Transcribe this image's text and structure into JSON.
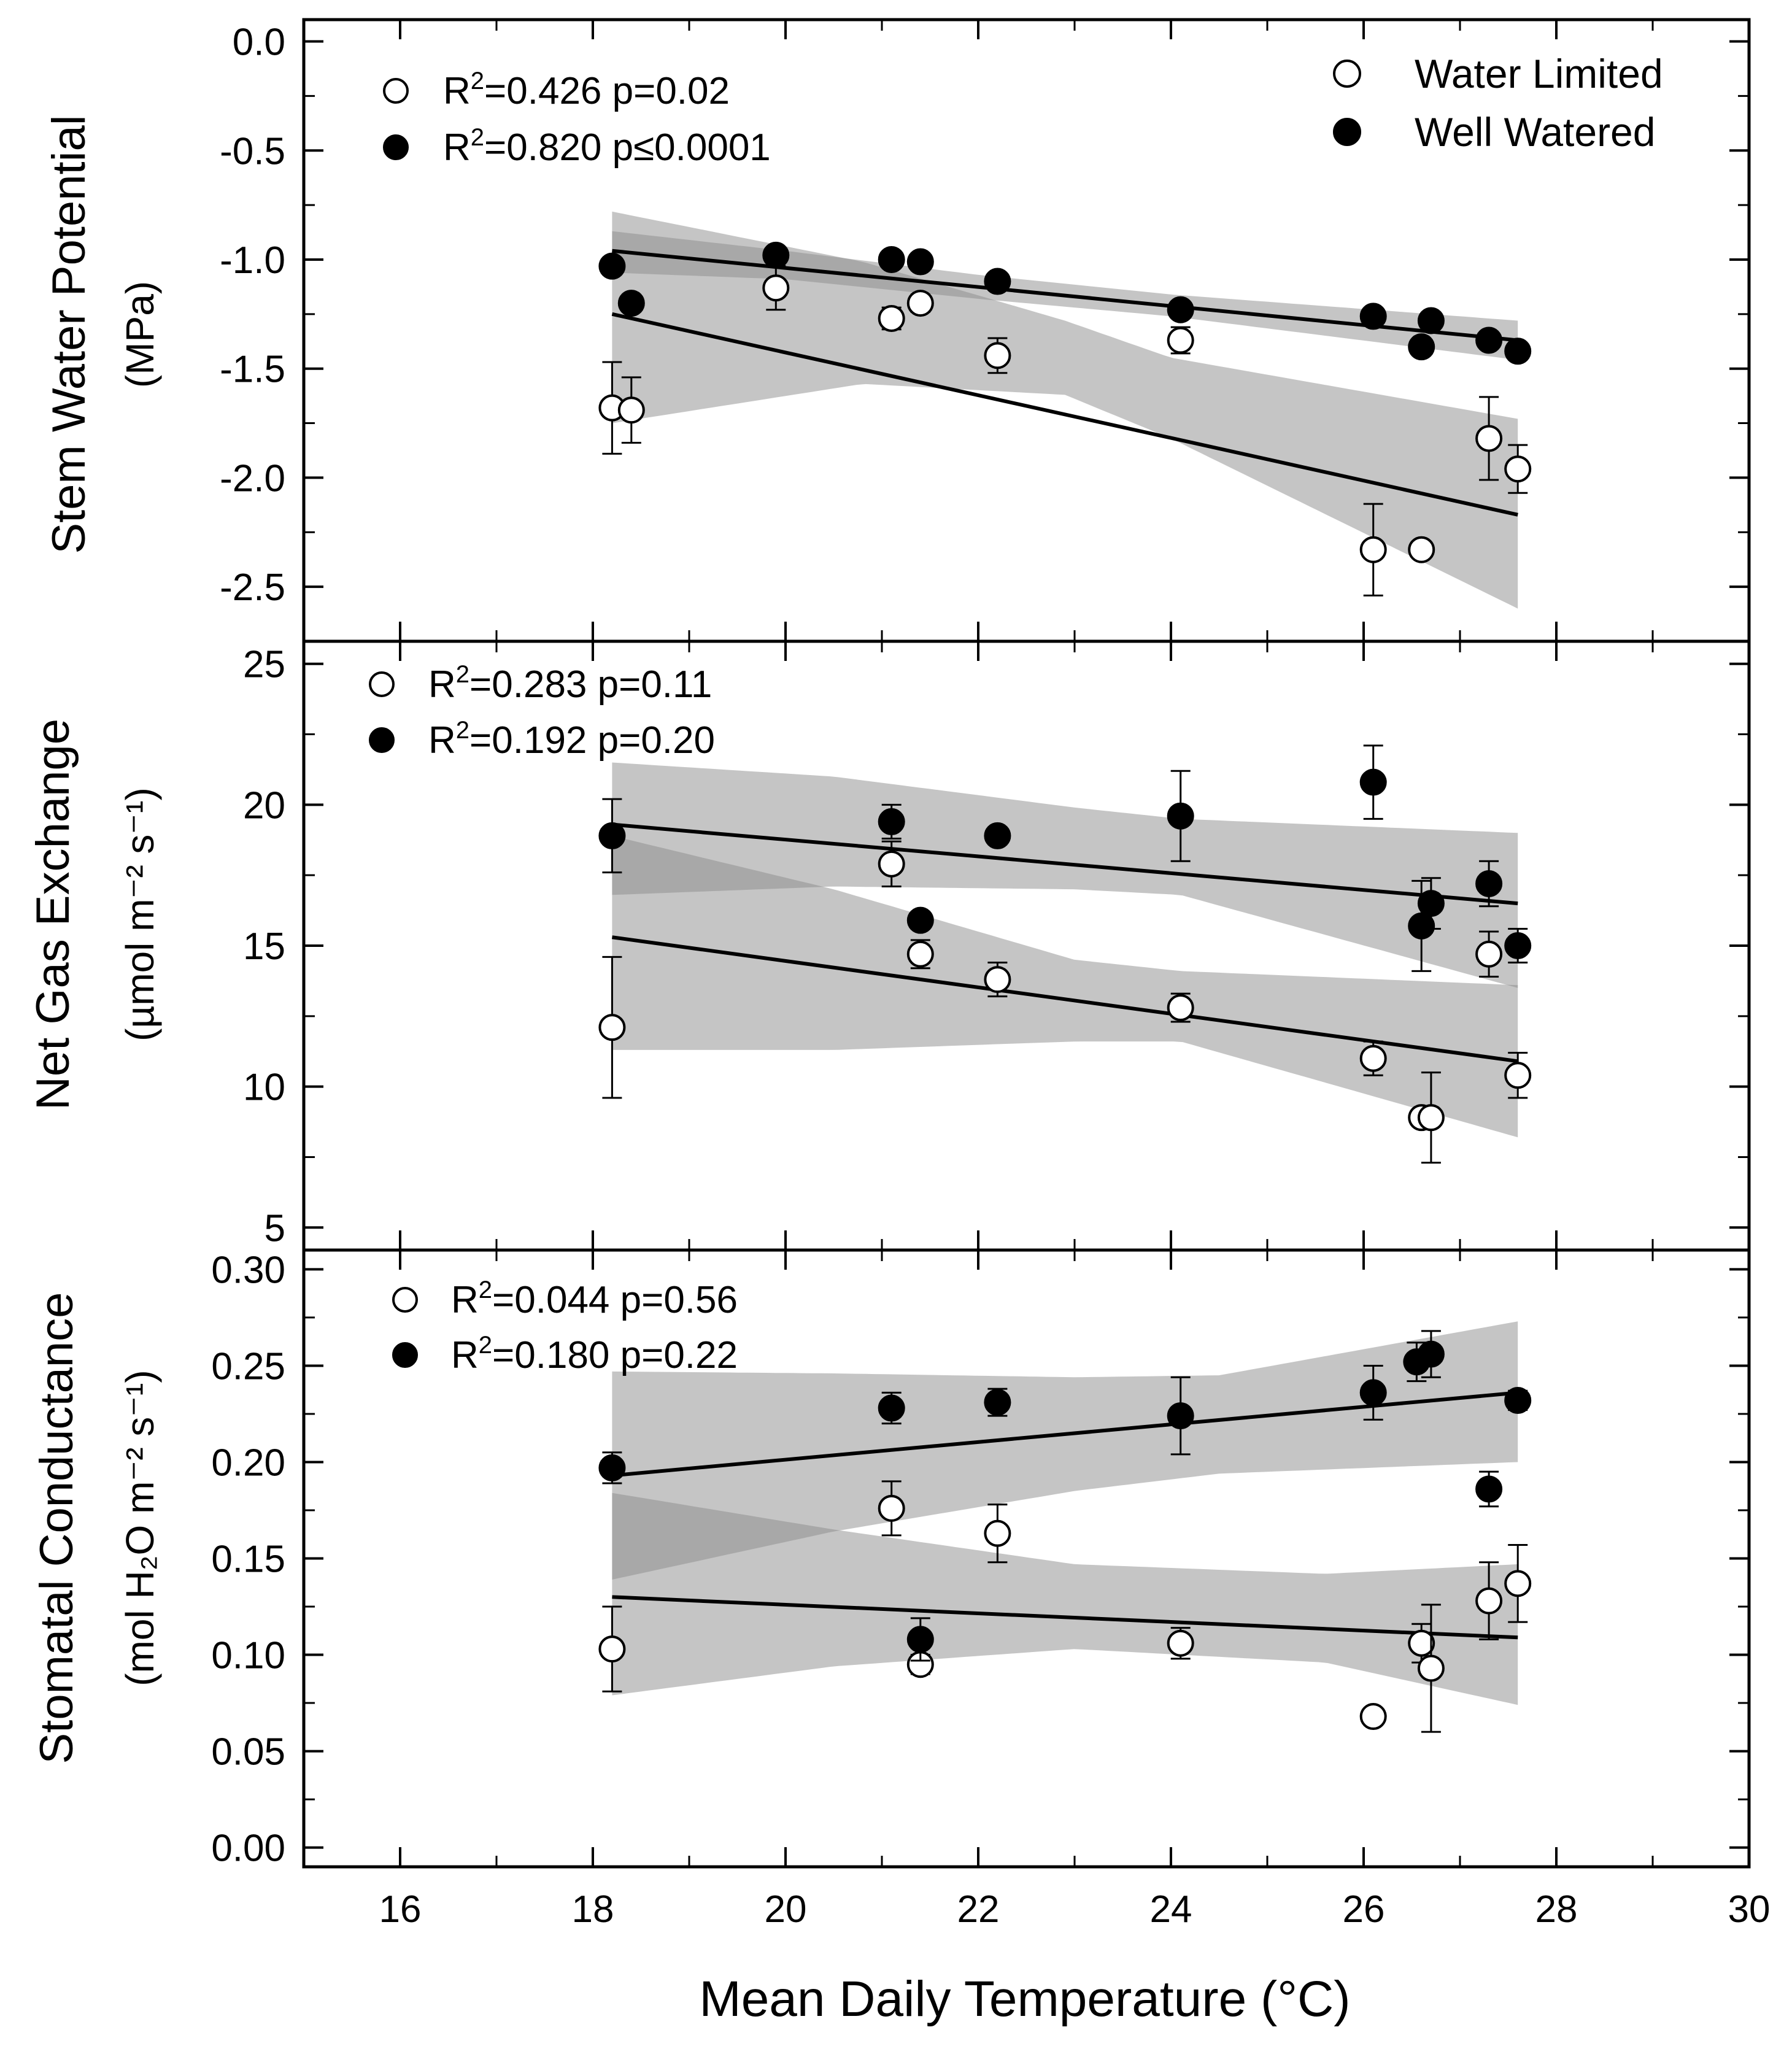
{
  "chart_data": {
    "type": "scatter",
    "title": "",
    "xlabel": "Mean Daily Temperature (°C)",
    "xlim": [
      15,
      30
    ],
    "xticks": [
      16,
      18,
      20,
      22,
      24,
      26,
      28,
      30
    ],
    "xtick_labels": [
      "16",
      "18",
      "20",
      "22",
      "24",
      "26",
      "28",
      "30"
    ],
    "legend": {
      "placement": "top-right of top panel",
      "entries": [
        {
          "label": "Water Limited",
          "marker": "open-circle"
        },
        {
          "label": "Well Watered",
          "marker": "filled-circle"
        }
      ]
    },
    "panels": [
      {
        "id": "swp",
        "ylabel": "Stem Water Potential",
        "yunit": "(MPa)",
        "ylim": [
          -2.75,
          0.1
        ],
        "yticks": [
          0.0,
          -0.5,
          -1.0,
          -1.5,
          -2.0,
          -2.5
        ],
        "ytick_labels": [
          "0.0",
          "-0.5",
          "-1.0",
          "-1.5",
          "-2.0",
          "-2.5"
        ],
        "stats": [
          {
            "marker": "open",
            "r2": "0.426",
            "p": "p=0.02"
          },
          {
            "marker": "filled",
            "r2": "0.820",
            "p": "p≤0.0001"
          }
        ],
        "series": [
          {
            "name": "Water Limited",
            "points": [
              [
                18.2,
                -1.68,
                0.21
              ],
              [
                18.4,
                -1.69,
                0.15
              ],
              [
                19.9,
                -1.13,
                0.1
              ],
              [
                21.1,
                -1.27,
                0.05
              ],
              [
                21.4,
                -1.2,
                0.04
              ],
              [
                22.2,
                -1.44,
                0.08
              ],
              [
                24.1,
                -1.37,
                0.06
              ],
              [
                26.1,
                -2.33,
                0.21
              ],
              [
                26.6,
                -2.33,
                0.02
              ],
              [
                27.3,
                -1.82,
                0.19
              ],
              [
                27.6,
                -1.96,
                0.11
              ]
            ],
            "fit": {
              "x": [
                18.2,
                27.6
              ],
              "y": [
                -1.25,
                -2.17
              ]
            },
            "band": {
              "x": [
                18.2,
                20.8,
                22.9,
                24.0,
                27.6
              ],
              "lower": [
                -1.75,
                -1.57,
                -1.62,
                -1.82,
                -2.6
              ],
              "upper": [
                -0.78,
                -1.01,
                -1.28,
                -1.45,
                -1.73
              ]
            }
          },
          {
            "name": "Well Watered",
            "points": [
              [
                18.2,
                -1.03,
                0.02
              ],
              [
                18.4,
                -1.2,
                0.02
              ],
              [
                19.9,
                -0.98,
                0.02
              ],
              [
                21.1,
                -1.0,
                0.02
              ],
              [
                21.4,
                -1.01,
                0.02
              ],
              [
                22.2,
                -1.1,
                0.02
              ],
              [
                24.1,
                -1.23,
                0.02
              ],
              [
                26.1,
                -1.26,
                0.02
              ],
              [
                26.6,
                -1.4,
                0.02
              ],
              [
                26.7,
                -1.28,
                0.02
              ],
              [
                27.3,
                -1.37,
                0.02
              ],
              [
                27.6,
                -1.42,
                0.02
              ]
            ],
            "fit": {
              "x": [
                18.2,
                27.6
              ],
              "y": [
                -0.96,
                -1.37
              ]
            },
            "band": {
              "x": [
                18.2,
                20.0,
                22.0,
                24.0,
                27.6
              ],
              "lower": [
                -1.06,
                -1.09,
                -1.18,
                -1.26,
                -1.46
              ],
              "upper": [
                -0.87,
                -0.96,
                -1.07,
                -1.16,
                -1.28
              ]
            }
          }
        ]
      },
      {
        "id": "nge",
        "ylabel": "Net Gas Exchange",
        "yunit": "(µmol m⁻² s⁻¹)",
        "ylim": [
          4.2,
          25.8
        ],
        "yticks": [
          5,
          10,
          15,
          20,
          25
        ],
        "ytick_labels": [
          "5",
          "10",
          "15",
          "20",
          "25"
        ],
        "stats": [
          {
            "marker": "open",
            "r2": "0.283",
            "p": "p=0.11"
          },
          {
            "marker": "filled",
            "r2": "0.192",
            "p": "p=0.20"
          }
        ],
        "series": [
          {
            "name": "Water Limited",
            "points": [
              [
                18.2,
                12.1,
                2.5
              ],
              [
                21.1,
                17.9,
                0.8
              ],
              [
                21.4,
                14.7,
                0.5
              ],
              [
                22.2,
                13.8,
                0.6
              ],
              [
                24.1,
                12.8,
                0.5
              ],
              [
                26.1,
                11.0,
                0.6
              ],
              [
                26.6,
                8.9,
                0.3
              ],
              [
                26.7,
                8.9,
                1.6
              ],
              [
                27.3,
                14.7,
                0.8
              ],
              [
                27.6,
                10.4,
                0.8
              ]
            ],
            "fit": {
              "x": [
                18.2,
                27.6
              ],
              "y": [
                15.3,
                10.9
              ]
            },
            "band": {
              "x": [
                18.2,
                20.5,
                23.0,
                24.1,
                27.6
              ],
              "lower": [
                11.3,
                11.3,
                11.6,
                11.6,
                8.2
              ],
              "upper": [
                18.9,
                17.0,
                14.5,
                14.1,
                13.6
              ]
            }
          },
          {
            "name": "Well Watered",
            "points": [
              [
                18.2,
                18.9,
                1.3
              ],
              [
                21.1,
                19.4,
                0.6
              ],
              [
                21.4,
                15.9,
                0.3
              ],
              [
                22.2,
                18.9,
                0.3
              ],
              [
                24.1,
                19.6,
                1.6
              ],
              [
                26.1,
                20.8,
                1.3
              ],
              [
                26.6,
                15.7,
                1.6
              ],
              [
                26.7,
                16.5,
                0.9
              ],
              [
                27.3,
                17.2,
                0.8
              ],
              [
                27.6,
                15.0,
                0.6
              ]
            ],
            "fit": {
              "x": [
                18.2,
                27.6
              ],
              "y": [
                19.3,
                16.5
              ]
            },
            "band": {
              "x": [
                18.2,
                20.5,
                23.0,
                24.1,
                27.6
              ],
              "lower": [
                16.8,
                17.1,
                17.0,
                16.8,
                13.5
              ],
              "upper": [
                21.5,
                21.0,
                19.9,
                19.5,
                19.0
              ]
            }
          }
        ]
      },
      {
        "id": "gs",
        "ylabel": "Stomatal Conductance",
        "yunit": "(mol H₂O m⁻² s⁻¹)",
        "ylim": [
          -0.01,
          0.31
        ],
        "yticks": [
          0.0,
          0.05,
          0.1,
          0.15,
          0.2,
          0.25,
          0.3
        ],
        "ytick_labels": [
          "0.00",
          "0.05",
          "0.10",
          "0.15",
          "0.20",
          "0.25",
          "0.30"
        ],
        "stats": [
          {
            "marker": "open",
            "r2": "0.044",
            "p": "p=0.56"
          },
          {
            "marker": "filled",
            "r2": "0.180",
            "p": "p=0.22"
          }
        ],
        "series": [
          {
            "name": "Water Limited",
            "points": [
              [
                18.2,
                0.103,
                0.022
              ],
              [
                21.1,
                0.176,
                0.014
              ],
              [
                21.4,
                0.095,
                0.005
              ],
              [
                22.2,
                0.163,
                0.015
              ],
              [
                24.1,
                0.106,
                0.008
              ],
              [
                26.1,
                0.068,
                0.004
              ],
              [
                26.6,
                0.106,
                0.01
              ],
              [
                26.7,
                0.093,
                0.033
              ],
              [
                27.3,
                0.128,
                0.02
              ],
              [
                27.6,
                0.137,
                0.02
              ]
            ],
            "fit": {
              "x": [
                18.2,
                27.6
              ],
              "y": [
                0.13,
                0.109
              ]
            },
            "band": {
              "x": [
                18.2,
                20.5,
                23.0,
                25.6,
                27.6
              ],
              "lower": [
                0.079,
                0.094,
                0.103,
                0.096,
                0.074
              ],
              "upper": [
                0.184,
                0.165,
                0.147,
                0.142,
                0.147
              ]
            }
          },
          {
            "name": "Well Watered",
            "points": [
              [
                18.2,
                0.197,
                0.008
              ],
              [
                21.1,
                0.228,
                0.008
              ],
              [
                21.4,
                0.108,
                0.011
              ],
              [
                22.2,
                0.231,
                0.007
              ],
              [
                24.1,
                0.224,
                0.02
              ],
              [
                26.1,
                0.236,
                0.014
              ],
              [
                26.55,
                0.252,
                0.01
              ],
              [
                26.7,
                0.256,
                0.012
              ],
              [
                27.3,
                0.186,
                0.009
              ],
              [
                27.6,
                0.232,
                0.005
              ]
            ],
            "fit": {
              "x": [
                18.2,
                27.6
              ],
              "y": [
                0.193,
                0.236
              ]
            },
            "band": {
              "x": [
                18.2,
                20.5,
                23.0,
                24.5,
                27.6
              ],
              "lower": [
                0.139,
                0.164,
                0.185,
                0.194,
                0.2
              ],
              "upper": [
                0.247,
                0.246,
                0.244,
                0.245,
                0.273
              ]
            }
          }
        ]
      }
    ]
  }
}
